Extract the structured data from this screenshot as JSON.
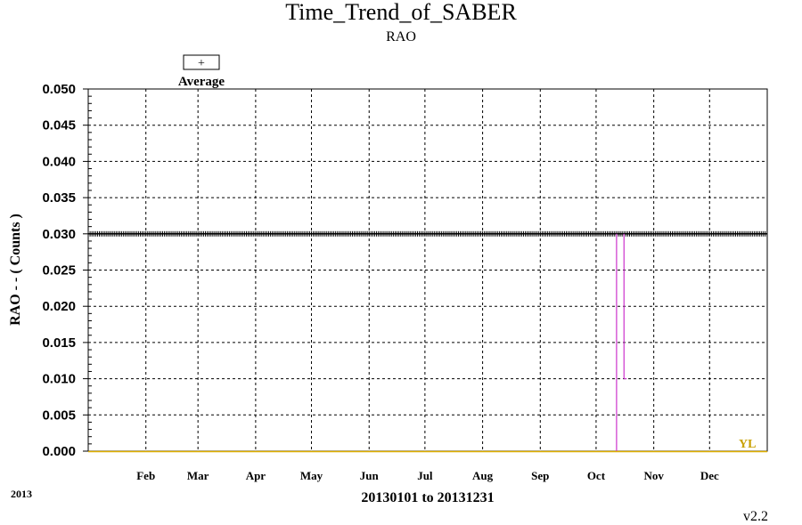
{
  "chart_data": {
    "type": "line",
    "title": "Time_Trend_of_SABER",
    "subtitle": "RAO",
    "ylabel": "RAO  - - ( Counts )",
    "xlabel": "20130101 to 20131231",
    "year_label": "2013",
    "version": "v2.2",
    "ylim": [
      0,
      0.05
    ],
    "yticks": [
      "0.000",
      "0.005",
      "0.010",
      "0.015",
      "0.020",
      "0.025",
      "0.030",
      "0.035",
      "0.040",
      "0.045",
      "0.050"
    ],
    "xlim": [
      "2013-01-01",
      "2013-12-31"
    ],
    "month_ticks": [
      {
        "label": "Feb",
        "date": "2013-02-01"
      },
      {
        "label": "Mar",
        "date": "2013-03-01"
      },
      {
        "label": "Apr",
        "date": "2013-04-01"
      },
      {
        "label": "May",
        "date": "2013-05-01"
      },
      {
        "label": "Jun",
        "date": "2013-06-01"
      },
      {
        "label": "Jul",
        "date": "2013-07-01"
      },
      {
        "label": "Aug",
        "date": "2013-08-01"
      },
      {
        "label": "Sep",
        "date": "2013-09-01"
      },
      {
        "label": "Oct",
        "date": "2013-10-01"
      },
      {
        "label": "Nov",
        "date": "2013-11-01"
      },
      {
        "label": "Dec",
        "date": "2013-12-01"
      }
    ],
    "grid": true,
    "legend": {
      "entries": [
        {
          "name": "Average",
          "marker": "+"
        }
      ],
      "placement": "top-left"
    },
    "series": [
      {
        "name": "Average",
        "marker": "+",
        "color": "#000000",
        "constant_value": 0.03,
        "date_range": [
          "2013-01-01",
          "2013-12-31"
        ],
        "dips": [
          {
            "date": "2013-10-12",
            "value": 0.0
          },
          {
            "date": "2013-10-16",
            "value": 0.01
          }
        ]
      }
    ],
    "annotations": [
      {
        "text": "YL",
        "color": "#c8a000",
        "value": 0.0,
        "placement": "bottom-right"
      }
    ],
    "colors": {
      "dip_line": "#cc33cc",
      "yellow_limit": "#e0b000",
      "grid": "#000000"
    }
  }
}
